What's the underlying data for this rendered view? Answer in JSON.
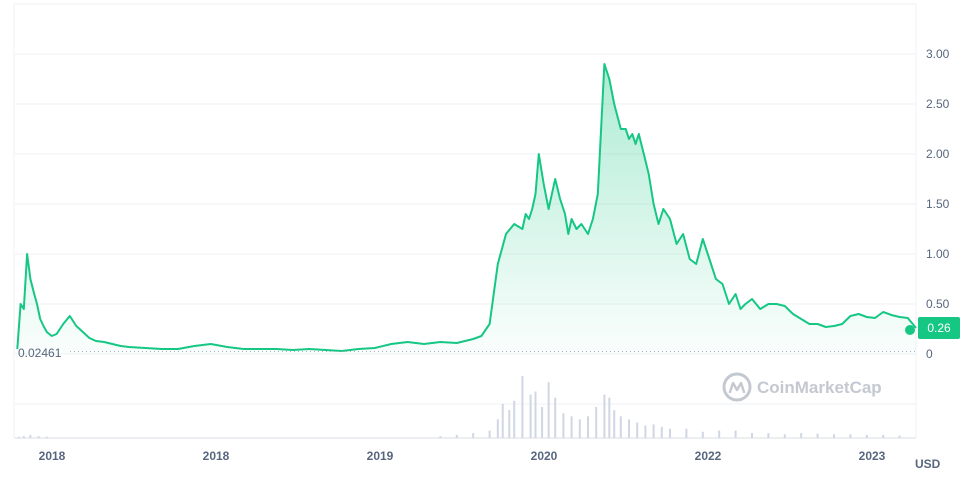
{
  "chart_data": {
    "type": "area",
    "currency": "USD",
    "y_ticks": [
      "3.00",
      "2.50",
      "2.00",
      "1.50",
      "1.00",
      "0.50",
      "0"
    ],
    "y_tick_values": [
      3.0,
      2.5,
      2.0,
      1.5,
      1.0,
      0.5,
      0
    ],
    "ylim": [
      0,
      3.0
    ],
    "x_ticks": [
      "2018",
      "2018",
      "2019",
      "2020",
      "2022",
      "2023"
    ],
    "x_tick_positions": [
      2017.9,
      2018.9,
      2019.9,
      2020.9,
      2021.9,
      2022.9
    ],
    "xlim": [
      2017.9,
      2023.4
    ],
    "baseline_label": "0.02461",
    "baseline_value": 0.02461,
    "current_price_label": "0.26",
    "current_price_value": 0.26,
    "watermark": "CoinMarketCap",
    "colors": {
      "line": "#16c784",
      "area_top": "#16c784",
      "volume": "#cfd6e4",
      "grid": "#eff2f5",
      "price_badge_bg": "#16c784",
      "price_badge_text": "#ffffff",
      "axis_text": "#58667e",
      "watermark": "#c3c8d1"
    },
    "series": [
      {
        "x": [
          2017.92,
          2017.94,
          2017.96,
          2017.98,
          2018.0,
          2018.02,
          2018.04,
          2018.06,
          2018.08,
          2018.1,
          2018.13,
          2018.16,
          2018.2,
          2018.24,
          2018.28,
          2018.32,
          2018.36,
          2018.4,
          2018.45,
          2018.5,
          2018.55,
          2018.6,
          2018.7,
          2018.8,
          2018.9,
          2019.0,
          2019.1,
          2019.2,
          2019.3,
          2019.4,
          2019.5,
          2019.6,
          2019.7,
          2019.8,
          2019.9,
          2020.0,
          2020.1,
          2020.2,
          2020.3,
          2020.4,
          2020.5,
          2020.6,
          2020.7,
          2020.75,
          2020.8,
          2020.85,
          2020.9,
          2020.95,
          2021.0,
          2021.02,
          2021.04,
          2021.06,
          2021.08,
          2021.1,
          2021.13,
          2021.16,
          2021.2,
          2021.23,
          2021.26,
          2021.28,
          2021.3,
          2021.33,
          2021.36,
          2021.4,
          2021.43,
          2021.46,
          2021.5,
          2021.53,
          2021.56,
          2021.6,
          2021.63,
          2021.65,
          2021.67,
          2021.69,
          2021.71,
          2021.74,
          2021.77,
          2021.8,
          2021.83,
          2021.86,
          2021.9,
          2021.94,
          2021.98,
          2022.02,
          2022.06,
          2022.1,
          2022.14,
          2022.18,
          2022.22,
          2022.26,
          2022.3,
          2022.33,
          2022.36,
          2022.4,
          2022.45,
          2022.5,
          2022.55,
          2022.6,
          2022.65,
          2022.7,
          2022.75,
          2022.8,
          2022.85,
          2022.9,
          2022.95,
          2023.0,
          2023.05,
          2023.1,
          2023.15,
          2023.2,
          2023.25,
          2023.3,
          2023.35,
          2023.4
        ],
        "y": [
          0.05,
          0.5,
          0.45,
          1.0,
          0.75,
          0.62,
          0.5,
          0.35,
          0.28,
          0.22,
          0.18,
          0.2,
          0.3,
          0.38,
          0.28,
          0.22,
          0.16,
          0.13,
          0.12,
          0.1,
          0.08,
          0.07,
          0.06,
          0.05,
          0.05,
          0.08,
          0.1,
          0.07,
          0.05,
          0.05,
          0.05,
          0.04,
          0.05,
          0.04,
          0.03,
          0.05,
          0.06,
          0.1,
          0.12,
          0.1,
          0.12,
          0.11,
          0.15,
          0.18,
          0.3,
          0.9,
          1.2,
          1.3,
          1.25,
          1.4,
          1.35,
          1.45,
          1.6,
          2.0,
          1.7,
          1.45,
          1.75,
          1.55,
          1.4,
          1.2,
          1.35,
          1.25,
          1.3,
          1.2,
          1.35,
          1.6,
          2.9,
          2.75,
          2.5,
          2.25,
          2.25,
          2.15,
          2.2,
          2.1,
          2.2,
          2.0,
          1.8,
          1.5,
          1.3,
          1.45,
          1.35,
          1.1,
          1.2,
          0.95,
          0.9,
          1.15,
          0.95,
          0.75,
          0.7,
          0.5,
          0.6,
          0.45,
          0.5,
          0.55,
          0.45,
          0.5,
          0.5,
          0.48,
          0.4,
          0.35,
          0.3,
          0.3,
          0.27,
          0.28,
          0.3,
          0.38,
          0.4,
          0.37,
          0.36,
          0.42,
          0.39,
          0.37,
          0.36,
          0.26
        ]
      }
    ],
    "volume": {
      "x": [
        2017.93,
        2017.96,
        2018.0,
        2018.05,
        2018.1,
        2020.5,
        2020.6,
        2020.7,
        2020.8,
        2020.85,
        2020.88,
        2020.92,
        2020.95,
        2021.0,
        2021.05,
        2021.08,
        2021.12,
        2021.16,
        2021.2,
        2021.25,
        2021.3,
        2021.35,
        2021.4,
        2021.45,
        2021.5,
        2021.53,
        2021.56,
        2021.6,
        2021.65,
        2021.7,
        2021.75,
        2021.8,
        2021.85,
        2021.9,
        2022.0,
        2022.1,
        2022.2,
        2022.3,
        2022.4,
        2022.5,
        2022.6,
        2022.7,
        2022.8,
        2022.9,
        2023.0,
        2023.1,
        2023.2,
        2023.3
      ],
      "v": [
        0.02,
        0.03,
        0.05,
        0.03,
        0.02,
        0.03,
        0.05,
        0.08,
        0.12,
        0.3,
        0.55,
        0.45,
        0.6,
        1.0,
        0.7,
        0.75,
        0.5,
        0.9,
        0.65,
        0.4,
        0.35,
        0.3,
        0.35,
        0.5,
        0.7,
        0.65,
        0.45,
        0.35,
        0.3,
        0.25,
        0.2,
        0.22,
        0.18,
        0.15,
        0.15,
        0.1,
        0.12,
        0.12,
        0.08,
        0.08,
        0.06,
        0.08,
        0.07,
        0.06,
        0.06,
        0.05,
        0.05,
        0.04
      ]
    }
  }
}
